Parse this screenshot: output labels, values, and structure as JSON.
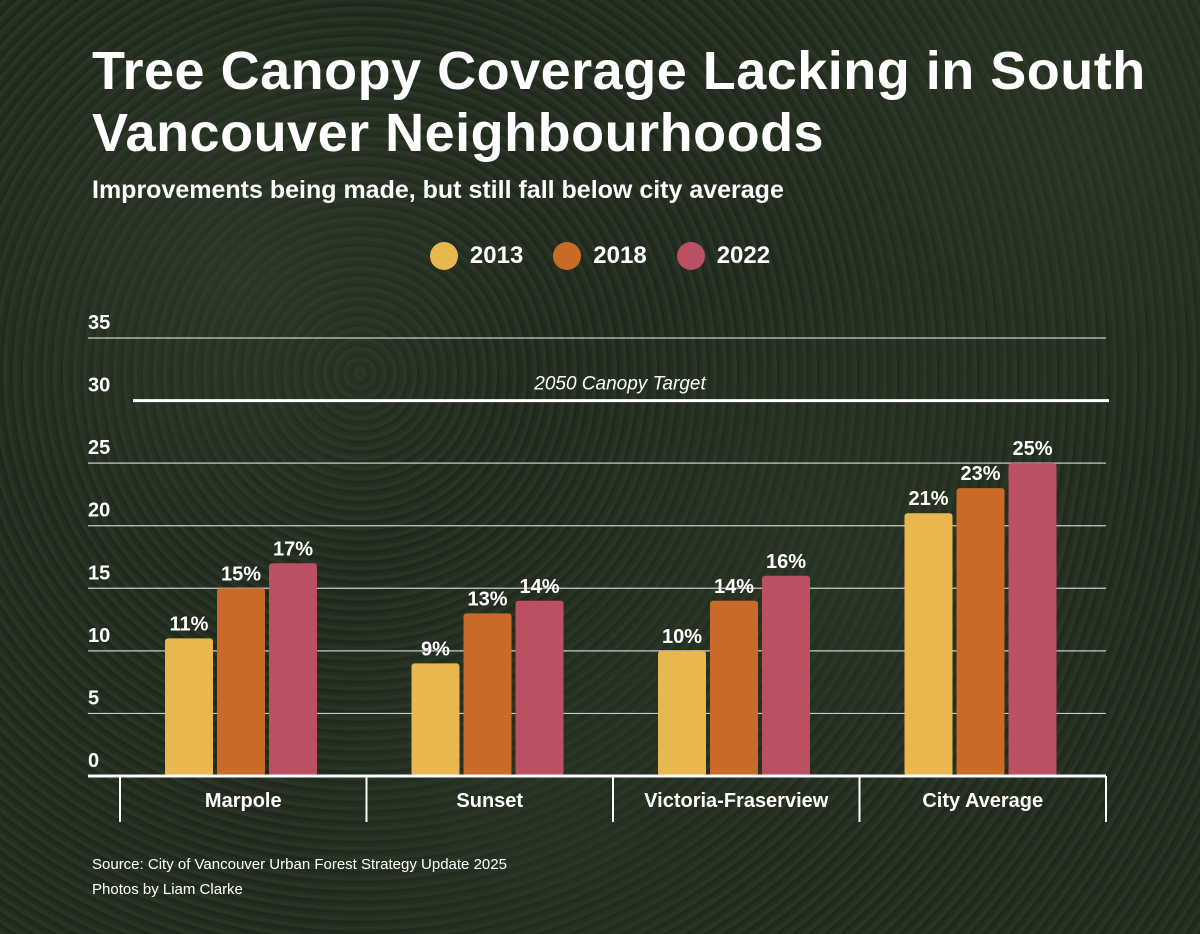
{
  "chart_data": {
    "type": "bar",
    "title": "Tree Canopy Coverage Lacking in South Vancouver Neighbourhoods",
    "subtitle": "Improvements being made, but still fall below city average",
    "categories": [
      "Marpole",
      "Sunset",
      "Victoria-Fraserview",
      "City Average"
    ],
    "series": [
      {
        "name": "2013",
        "color": "#E8B84E",
        "values": [
          11,
          9,
          10,
          21
        ],
        "labels": [
          "11%",
          "9%",
          "10%",
          "21%"
        ]
      },
      {
        "name": "2018",
        "color": "#C96A28",
        "values": [
          15,
          13,
          14,
          23
        ],
        "labels": [
          "15%",
          "13%",
          "14%",
          "23%"
        ]
      },
      {
        "name": "2022",
        "color": "#BA5062",
        "values": [
          17,
          14,
          16,
          25
        ],
        "labels": [
          "17%",
          "14%",
          "16%",
          "25%"
        ]
      }
    ],
    "ylim": [
      0,
      35
    ],
    "yticks": [
      "0",
      "5",
      "10",
      "15",
      "20",
      "25",
      "30",
      "35"
    ],
    "grid": true,
    "legend": "top-center",
    "annotation": {
      "label": "2050 Canopy Target",
      "value": 30
    },
    "xlabel": "",
    "ylabel": ""
  },
  "footer": {
    "source": "Source: City of Vancouver Urban Forest Strategy Update 2025",
    "photo_credit": "Photos by Liam Clarke"
  }
}
